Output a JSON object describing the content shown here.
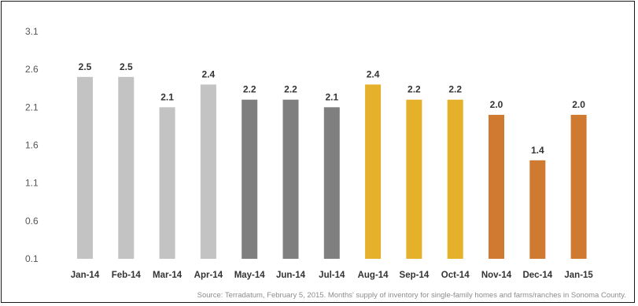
{
  "chart_data": {
    "type": "bar",
    "categories": [
      "Jan-14",
      "Feb-14",
      "Mar-14",
      "Apr-14",
      "May-14",
      "Jun-14",
      "Jul-14",
      "Aug-14",
      "Sep-14",
      "Oct-14",
      "Nov-14",
      "Dec-14",
      "Jan-15"
    ],
    "values": [
      2.5,
      2.5,
      2.1,
      2.4,
      2.2,
      2.2,
      2.1,
      2.4,
      2.2,
      2.2,
      2.0,
      1.4,
      2.0
    ],
    "data_labels": [
      "2.5",
      "2.5",
      "2.1",
      "2.4",
      "2.2",
      "2.2",
      "2.1",
      "2.4",
      "2.2",
      "2.2",
      "2.0",
      "1.4",
      "2.0"
    ],
    "bar_colors": [
      "#c3c3c3",
      "#c3c3c3",
      "#c3c3c3",
      "#c3c3c3",
      "#7f7f7f",
      "#7f7f7f",
      "#7f7f7f",
      "#e5b02a",
      "#e5b02a",
      "#e5b02a",
      "#cf7a30",
      "#cf7a30",
      "#cf7a30"
    ],
    "yticks": [
      "3.1",
      "2.6",
      "2.1",
      "1.6",
      "1.1",
      "0.6",
      "0.1"
    ],
    "ylim": [
      0.1,
      3.1
    ],
    "grid": false,
    "legend": false,
    "source": "Source: Terradatum, February 5, 2015. Months' supply of inventory for single-family homes and farms/ranches in Sonoma County."
  }
}
